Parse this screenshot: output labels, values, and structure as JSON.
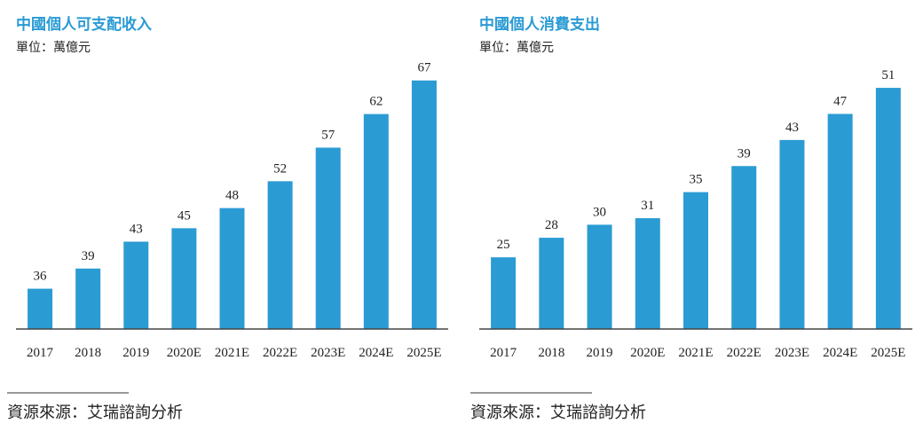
{
  "chart_data": [
    {
      "type": "bar",
      "title": "中國個人可支配收入",
      "subtitle": "單位：萬億元",
      "categories": [
        "2017",
        "2018",
        "2019",
        "2020E",
        "2021E",
        "2022E",
        "2023E",
        "2024E",
        "2025E"
      ],
      "values": [
        36,
        39,
        43,
        45,
        48,
        52,
        57,
        62,
        67
      ],
      "color": "#2b9bd3",
      "ylim": [
        30,
        70
      ],
      "source": "資源來源：艾瑞諮詢分析"
    },
    {
      "type": "bar",
      "title": "中國個人消費支出",
      "subtitle": "單位：萬億元",
      "categories": [
        "2017",
        "2018",
        "2019",
        "2020E",
        "2021E",
        "2022E",
        "2023E",
        "2024E",
        "2025E"
      ],
      "values": [
        25,
        28,
        30,
        31,
        35,
        39,
        43,
        47,
        51
      ],
      "color": "#2b9bd3",
      "ylim": [
        14,
        54
      ],
      "source": "資源來源：艾瑞諮詢分析"
    }
  ]
}
